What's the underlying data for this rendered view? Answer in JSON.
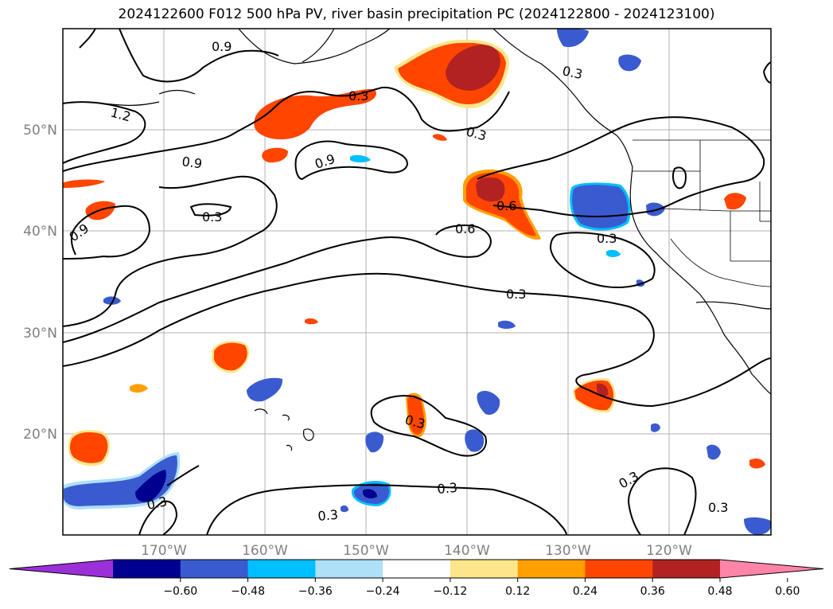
{
  "title": "2024122600 F012 500 hPa PV, river basin precipitation PC (2024122800 - 2024123100)",
  "map": {
    "lat_labels": [
      "50°N",
      "40°N",
      "30°N",
      "20°N"
    ],
    "lon_labels": [
      "170°W",
      "160°W",
      "150°W",
      "140°W",
      "130°W",
      "120°W"
    ],
    "contour_labels": [
      "0.9",
      "0.3",
      "1.2",
      "0.3",
      "0.3",
      "0.9",
      "0.9",
      "0.3",
      "0.6",
      "0.6",
      "0.3",
      "0.9",
      "0.3",
      "0.3",
      "0.3",
      "0.3",
      "0.3",
      "0.3",
      "0.3"
    ]
  },
  "colorbar": {
    "ticks": [
      "−0.60",
      "−0.48",
      "−0.36",
      "−0.24",
      "−0.12",
      "0.12",
      "0.24",
      "0.36",
      "0.48",
      "0.60"
    ],
    "colors": [
      "#9b30d9",
      "#000090",
      "#3a5bd0",
      "#00bfff",
      "#aee0f8",
      "#ffffff",
      "#fde68a",
      "#ffa000",
      "#ff4500",
      "#b22222",
      "#ff85a8"
    ]
  }
}
